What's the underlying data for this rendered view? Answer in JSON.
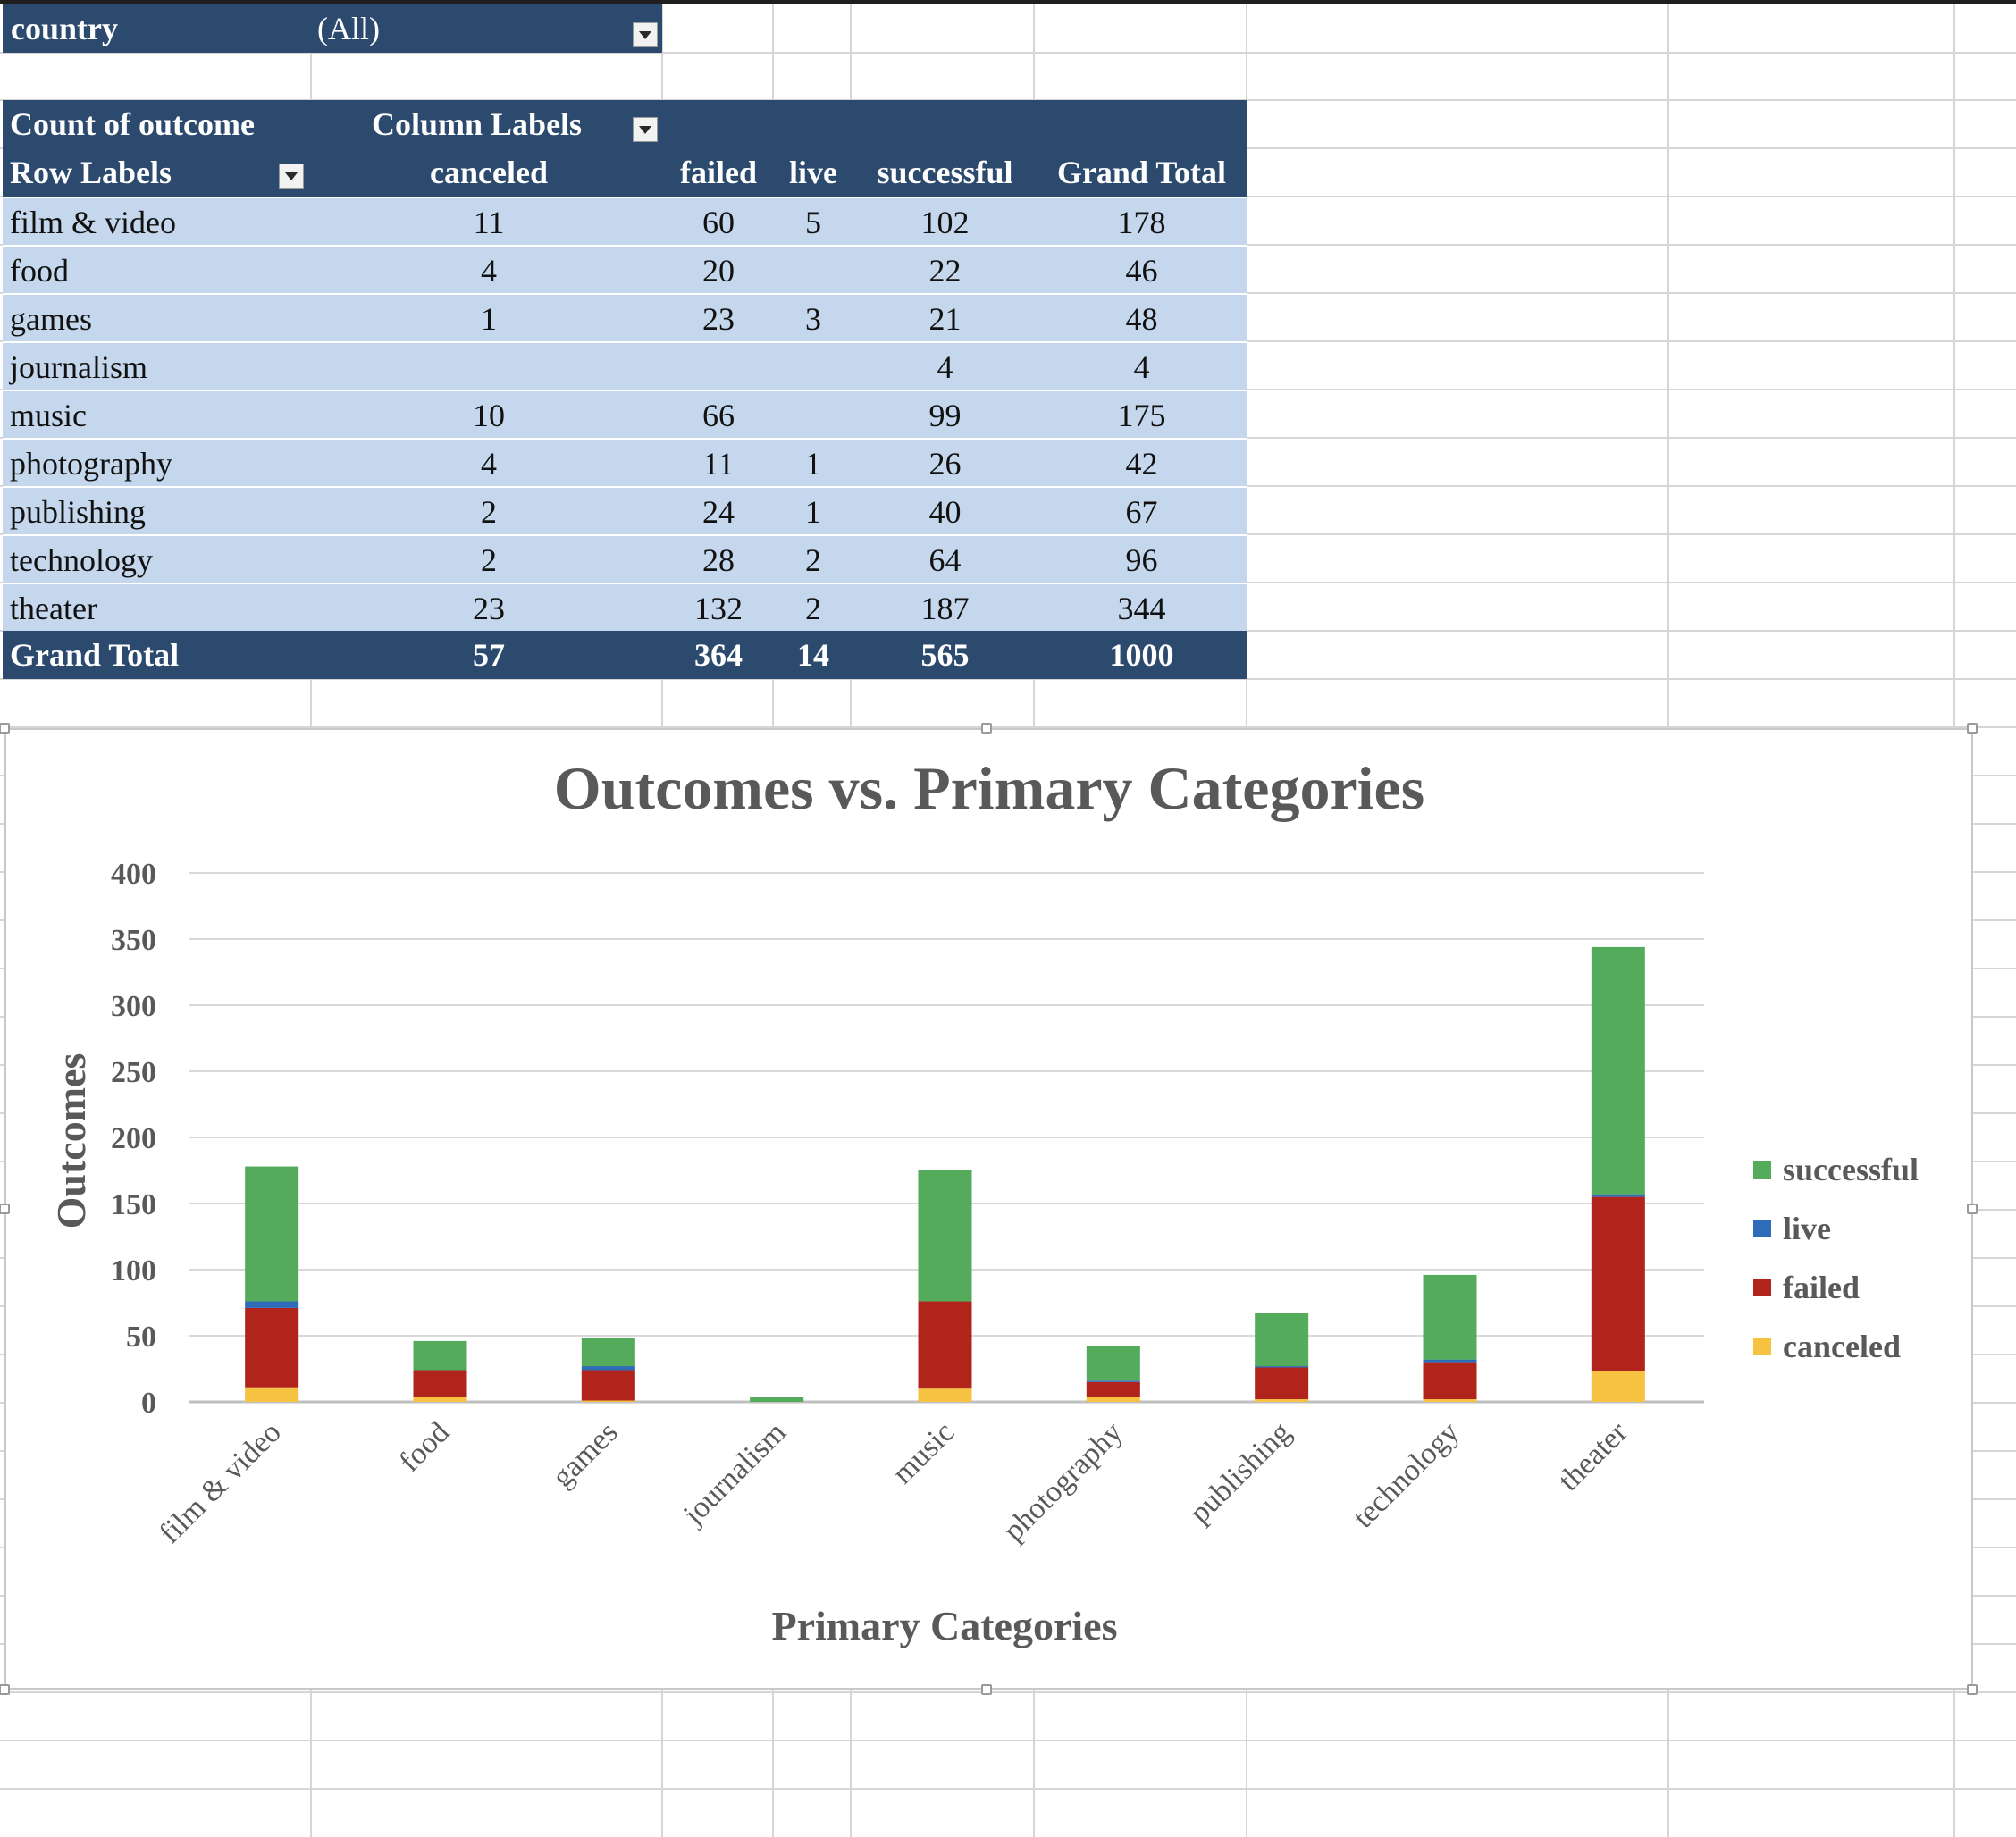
{
  "filter": {
    "label": "country",
    "value": "(All)"
  },
  "pivot": {
    "header1": {
      "measure": "Count of outcome",
      "column_labels": "Column Labels"
    },
    "header2": {
      "row_labels": "Row Labels",
      "columns": [
        "canceled",
        "failed",
        "live",
        "successful",
        "Grand Total"
      ]
    },
    "rows": [
      {
        "label": "film & video",
        "values": [
          "11",
          "60",
          "5",
          "102",
          "178"
        ]
      },
      {
        "label": "food",
        "values": [
          "4",
          "20",
          "",
          "22",
          "46"
        ]
      },
      {
        "label": "games",
        "values": [
          "1",
          "23",
          "3",
          "21",
          "48"
        ]
      },
      {
        "label": "journalism",
        "values": [
          "",
          "",
          "",
          "4",
          "4"
        ]
      },
      {
        "label": "music",
        "values": [
          "10",
          "66",
          "",
          "99",
          "175"
        ]
      },
      {
        "label": "photography",
        "values": [
          "4",
          "11",
          "1",
          "26",
          "42"
        ]
      },
      {
        "label": "publishing",
        "values": [
          "2",
          "24",
          "1",
          "40",
          "67"
        ]
      },
      {
        "label": "technology",
        "values": [
          "2",
          "28",
          "2",
          "64",
          "96"
        ]
      },
      {
        "label": "theater",
        "values": [
          "23",
          "132",
          "2",
          "187",
          "344"
        ]
      }
    ],
    "total": {
      "label": "Grand Total",
      "values": [
        "57",
        "364",
        "14",
        "565",
        "1000"
      ]
    }
  },
  "chart_data": {
    "type": "bar",
    "stacked": true,
    "title": "Outcomes vs. Primary Categories",
    "xlabel": "Primary Categories",
    "ylabel": "Outcomes",
    "ylim": [
      0,
      400
    ],
    "yticks": [
      0,
      50,
      100,
      150,
      200,
      250,
      300,
      350,
      400
    ],
    "grid": true,
    "legend": "right",
    "categories": [
      "film & video",
      "food",
      "games",
      "journalism",
      "music",
      "photography",
      "publishing",
      "technology",
      "theater"
    ],
    "series": [
      {
        "name": "canceled",
        "color": "#f5c242",
        "values": [
          11,
          4,
          1,
          0,
          10,
          4,
          2,
          2,
          23
        ]
      },
      {
        "name": "failed",
        "color": "#b0241b",
        "values": [
          60,
          20,
          23,
          0,
          66,
          11,
          24,
          28,
          132
        ]
      },
      {
        "name": "live",
        "color": "#2e6bb8",
        "values": [
          5,
          0,
          3,
          0,
          0,
          1,
          1,
          2,
          2
        ]
      },
      {
        "name": "successful",
        "color": "#53ab5b",
        "values": [
          102,
          22,
          21,
          4,
          99,
          26,
          40,
          64,
          187
        ]
      }
    ],
    "legend_order": [
      "successful",
      "live",
      "failed",
      "canceled"
    ]
  }
}
